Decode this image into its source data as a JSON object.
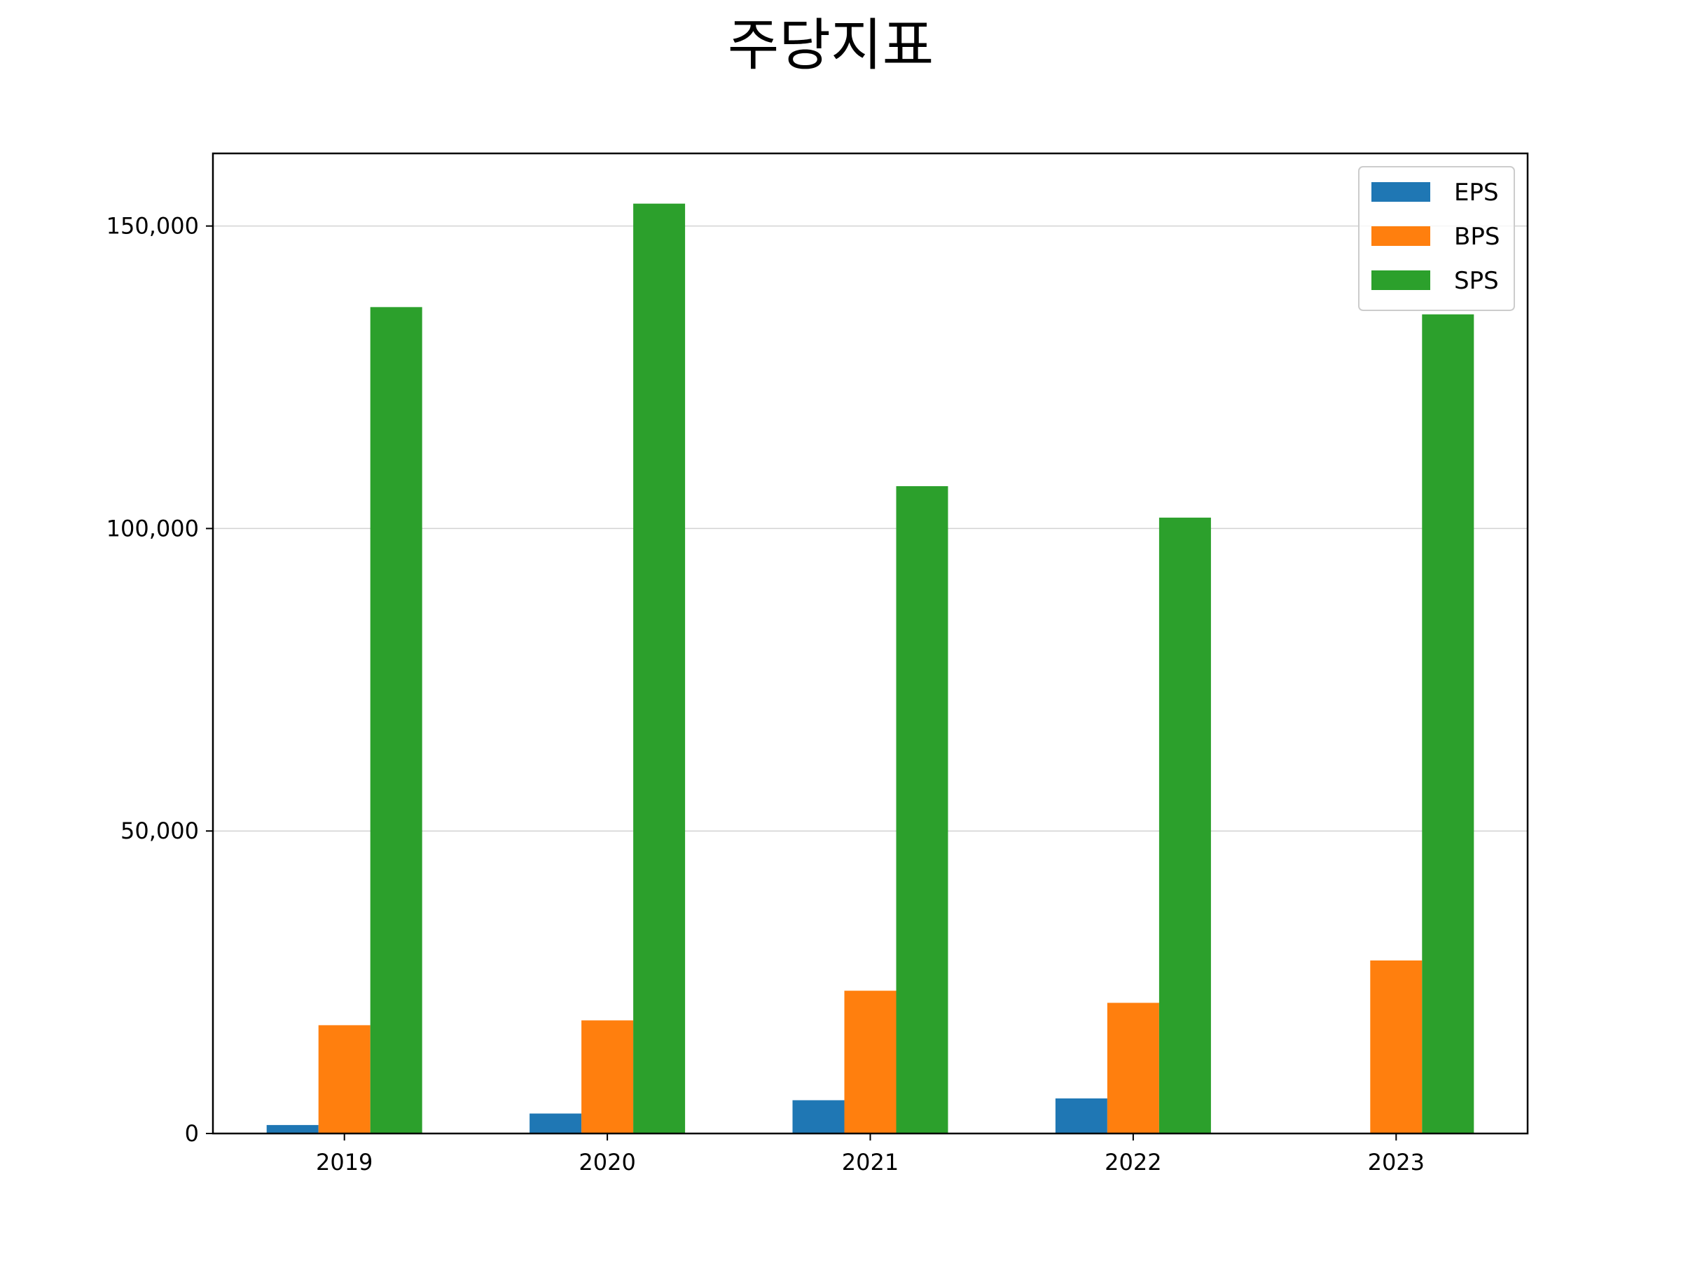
{
  "chart_data": {
    "type": "bar",
    "title": "주당지표",
    "xlabel": "",
    "ylabel": "",
    "categories": [
      "2019",
      "2020",
      "2021",
      "2022",
      "2023"
    ],
    "series": [
      {
        "name": "EPS",
        "color": "#1f77b4",
        "values": [
          1400,
          3300,
          5500,
          5800,
          0
        ]
      },
      {
        "name": "BPS",
        "color": "#ff7f0e",
        "values": [
          17900,
          18700,
          23600,
          21600,
          28600
        ]
      },
      {
        "name": "SPS",
        "color": "#2ca02c",
        "values": [
          136600,
          153700,
          107000,
          101800,
          135400
        ]
      }
    ],
    "ylim": [
      0,
      162000
    ],
    "yticks": [
      0,
      50000,
      100000,
      150000
    ],
    "ytick_labels": [
      "0",
      "50,000",
      "100,000",
      "150,000"
    ],
    "grid": "y",
    "legend": "top-right"
  }
}
